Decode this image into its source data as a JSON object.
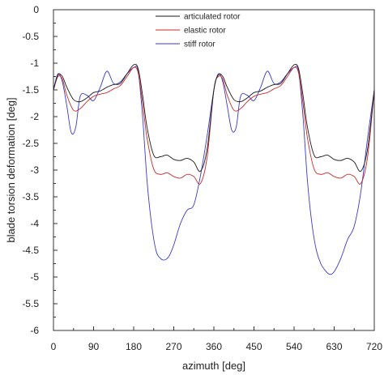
{
  "chart_data": {
    "type": "line",
    "xlabel": "azimuth [deg]",
    "ylabel": "blade torsion deformation [deg]",
    "xlim": [
      0,
      720
    ],
    "ylim": [
      -6,
      0
    ],
    "xticks": [
      0,
      90,
      180,
      270,
      360,
      450,
      540,
      630,
      720
    ],
    "yticks": [
      0,
      -0.5,
      -1,
      -1.5,
      -2,
      -2.5,
      -3,
      -3.5,
      -4,
      -4.5,
      -5,
      -5.5,
      -6
    ],
    "legend_position": "top-right",
    "grid": false,
    "series": [
      {
        "name": "articulated rotor",
        "color": "#1a1a1a",
        "x": [
          0,
          10,
          20,
          30,
          45,
          60,
          75,
          90,
          105,
          120,
          135,
          150,
          165,
          180,
          190,
          200,
          210,
          225,
          240,
          255,
          270,
          285,
          300,
          315,
          330,
          345,
          360,
          370,
          380,
          390,
          405,
          420,
          435,
          450,
          465,
          480,
          495,
          510,
          525,
          540,
          550,
          560,
          570,
          585,
          600,
          615,
          630,
          645,
          660,
          675,
          690,
          705,
          720
        ],
        "y": [
          -1.5,
          -1.22,
          -1.25,
          -1.45,
          -1.68,
          -1.72,
          -1.65,
          -1.55,
          -1.52,
          -1.45,
          -1.4,
          -1.38,
          -1.2,
          -1.03,
          -1.1,
          -1.6,
          -2.2,
          -2.72,
          -2.75,
          -2.72,
          -2.8,
          -2.82,
          -2.78,
          -2.85,
          -3.02,
          -2.6,
          -1.5,
          -1.22,
          -1.25,
          -1.45,
          -1.68,
          -1.72,
          -1.65,
          -1.55,
          -1.52,
          -1.45,
          -1.4,
          -1.38,
          -1.2,
          -1.03,
          -1.1,
          -1.6,
          -2.2,
          -2.72,
          -2.75,
          -2.72,
          -2.8,
          -2.82,
          -2.78,
          -2.85,
          -3.02,
          -2.6,
          -1.5
        ]
      },
      {
        "name": "elastic rotor",
        "color": "#cc2a2a",
        "x": [
          0,
          10,
          20,
          30,
          45,
          60,
          75,
          90,
          105,
          120,
          135,
          150,
          165,
          180,
          190,
          200,
          210,
          225,
          240,
          255,
          270,
          285,
          300,
          315,
          330,
          345,
          360,
          370,
          380,
          390,
          405,
          420,
          435,
          450,
          465,
          480,
          495,
          510,
          525,
          540,
          550,
          560,
          570,
          585,
          600,
          615,
          630,
          645,
          660,
          675,
          690,
          705,
          720
        ],
        "y": [
          -1.5,
          -1.25,
          -1.3,
          -1.6,
          -1.88,
          -1.85,
          -1.72,
          -1.62,
          -1.58,
          -1.55,
          -1.48,
          -1.42,
          -1.25,
          -1.08,
          -1.18,
          -1.75,
          -2.4,
          -2.98,
          -3.08,
          -3.05,
          -3.12,
          -3.15,
          -3.08,
          -3.12,
          -3.25,
          -2.75,
          -1.5,
          -1.25,
          -1.3,
          -1.6,
          -1.88,
          -1.85,
          -1.72,
          -1.62,
          -1.58,
          -1.55,
          -1.48,
          -1.42,
          -1.25,
          -1.08,
          -1.18,
          -1.75,
          -2.4,
          -2.98,
          -3.08,
          -3.05,
          -3.12,
          -3.15,
          -3.08,
          -3.12,
          -3.25,
          -2.75,
          -1.5
        ]
      },
      {
        "name": "stiff rotor",
        "color": "#3a3ad0",
        "x": [
          0,
          10,
          20,
          30,
          40,
          50,
          60,
          75,
          90,
          105,
          120,
          135,
          150,
          165,
          180,
          190,
          200,
          210,
          220,
          230,
          240,
          250,
          260,
          270,
          285,
          300,
          315,
          330,
          345,
          360,
          370,
          380,
          390,
          400,
          410,
          420,
          435,
          450,
          465,
          480,
          495,
          510,
          525,
          540,
          550,
          560,
          570,
          580,
          590,
          600,
          610,
          620,
          630,
          645,
          660,
          675,
          690,
          705,
          720
        ],
        "y": [
          -1.5,
          -1.2,
          -1.35,
          -1.8,
          -2.3,
          -2.2,
          -1.62,
          -1.6,
          -1.7,
          -1.45,
          -1.15,
          -1.38,
          -1.35,
          -1.2,
          -1.08,
          -1.15,
          -2.0,
          -3.2,
          -4.0,
          -4.5,
          -4.65,
          -4.68,
          -4.6,
          -4.4,
          -4.0,
          -3.75,
          -3.65,
          -3.1,
          -2.35,
          -1.5,
          -1.2,
          -1.35,
          -1.8,
          -2.25,
          -2.2,
          -1.62,
          -1.6,
          -1.7,
          -1.45,
          -1.15,
          -1.38,
          -1.35,
          -1.2,
          -1.08,
          -1.15,
          -2.0,
          -3.2,
          -4.0,
          -4.5,
          -4.75,
          -4.88,
          -4.95,
          -4.9,
          -4.65,
          -4.3,
          -4.05,
          -3.4,
          -2.4,
          -1.5
        ]
      }
    ]
  }
}
